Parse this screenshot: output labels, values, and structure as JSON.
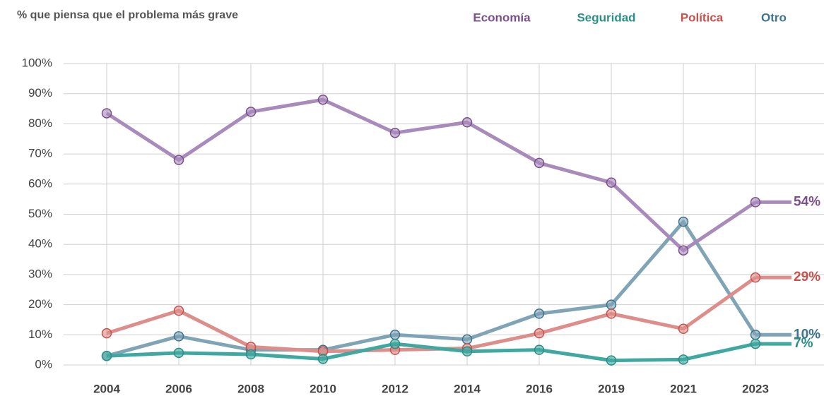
{
  "chart_data": {
    "type": "line",
    "subtitle": "% que piensa que el problema más grave",
    "categories": [
      "2004",
      "2006",
      "2008",
      "2010",
      "2012",
      "2014",
      "2016",
      "2019",
      "2021",
      "2023"
    ],
    "series": [
      {
        "name": "Otro",
        "color": "#7fa4b5",
        "label_color": "#3e7390",
        "values": [
          3,
          9.5,
          5,
          5,
          10,
          8.5,
          17,
          20,
          47.5,
          10
        ],
        "end_label": "10%"
      },
      {
        "name": "Política",
        "color": "#de8e8a",
        "label_color": "#c9504b",
        "values": [
          10.5,
          18,
          6,
          4.5,
          5,
          5.5,
          10.5,
          17,
          12,
          29
        ],
        "end_label": "29%"
      },
      {
        "name": "Seguridad",
        "color": "#3fa8a0",
        "label_color": "#2a8f86",
        "values": [
          3,
          4,
          3.5,
          2,
          7,
          4.5,
          5,
          1.5,
          1.8,
          7
        ],
        "end_label": "7%"
      },
      {
        "name": "Economía",
        "color": "#a98bbb",
        "label_color": "#7b4f8e",
        "values": [
          83.5,
          68,
          84,
          88,
          77,
          80.5,
          67,
          60.5,
          38,
          54
        ],
        "end_label": "54%"
      }
    ],
    "ylim": [
      0,
      100
    ],
    "yticks": [
      {
        "value": 0,
        "label": "0%"
      },
      {
        "value": 10,
        "label": "10%"
      },
      {
        "value": 20,
        "label": "20%"
      },
      {
        "value": 30,
        "label": "30%"
      },
      {
        "value": 40,
        "label": "40%"
      },
      {
        "value": 50,
        "label": "50%"
      },
      {
        "value": 60,
        "label": "60%"
      },
      {
        "value": 70,
        "label": "70%"
      },
      {
        "value": 80,
        "label": "80%"
      },
      {
        "value": 90,
        "label": "90%"
      },
      {
        "value": 100,
        "label": "100%"
      }
    ],
    "grid": true
  }
}
